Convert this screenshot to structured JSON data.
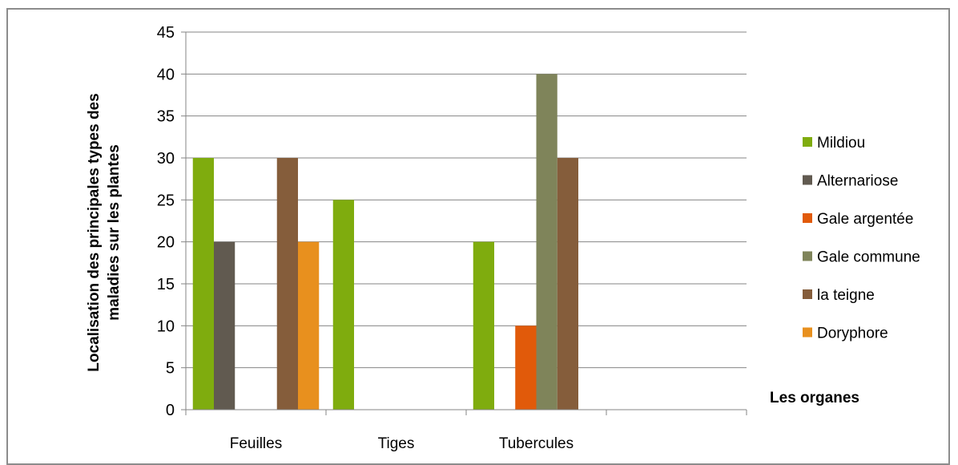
{
  "chart_data": {
    "type": "bar",
    "categories": [
      "Feuilles",
      "Tiges",
      "Tubercules",
      ""
    ],
    "series": [
      {
        "name": "Mildiou",
        "color": "#7fac0e",
        "values": [
          30,
          25,
          20,
          0
        ]
      },
      {
        "name": "Alternariose",
        "color": "#615a50",
        "values": [
          20,
          0,
          0,
          0
        ]
      },
      {
        "name": "Gale argentée",
        "color": "#e15a0a",
        "values": [
          0,
          0,
          10,
          0
        ]
      },
      {
        "name": "Gale commune",
        "color": "#7f845a",
        "values": [
          0,
          0,
          40,
          0
        ]
      },
      {
        "name": "la teigne",
        "color": "#855d3b",
        "values": [
          30,
          0,
          30,
          0
        ]
      },
      {
        "name": "Doryphore",
        "color": "#e8901e",
        "values": [
          20,
          0,
          0,
          0
        ]
      }
    ],
    "ylabel_lines": [
      "Localisation des principales types des",
      "maladies sur les plantes"
    ],
    "xlabel": "Les  organes",
    "ylim": [
      0,
      45
    ],
    "yticks": [
      0,
      5,
      10,
      15,
      20,
      25,
      30,
      35,
      40,
      45
    ],
    "grid": true,
    "legend": "right"
  }
}
